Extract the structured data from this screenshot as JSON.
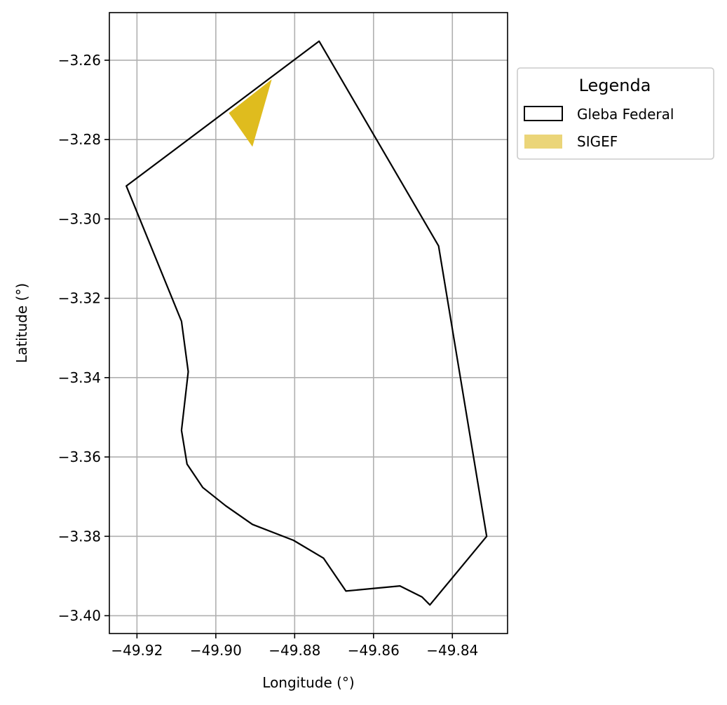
{
  "chart_data": {
    "type": "map",
    "xlabel": "Longitude (°)",
    "ylabel": "Latitude (°)",
    "xlim": [
      -49.927,
      -49.826
    ],
    "ylim": [
      -3.4045,
      -3.248
    ],
    "xticks": [
      -49.92,
      -49.9,
      -49.88,
      -49.86,
      -49.84
    ],
    "xtick_labels": [
      "−49.92",
      "−49.90",
      "−49.88",
      "−49.86",
      "−49.84"
    ],
    "yticks": [
      -3.26,
      -3.28,
      -3.3,
      -3.32,
      -3.34,
      -3.36,
      -3.38,
      -3.4
    ],
    "ytick_labels": [
      "−3.26",
      "−3.28",
      "−3.30",
      "−3.32",
      "−3.34",
      "−3.36",
      "−3.38",
      "−3.40"
    ],
    "grid": true,
    "legend": {
      "title": "Legenda",
      "placement": "outside-upper-right",
      "entries": [
        {
          "label": "Gleba Federal",
          "style": "outline"
        },
        {
          "label": "SIGEF",
          "style": "fill"
        }
      ]
    },
    "layers": [
      {
        "name": "Gleba Federal",
        "type": "polygon-outline",
        "stroke_color": "#000000",
        "coordinates": [
          [
            -49.8738,
            -3.2552
          ],
          [
            -49.8435,
            -3.3068
          ],
          [
            -49.8313,
            -3.38
          ],
          [
            -49.8457,
            -3.3973
          ],
          [
            -49.8477,
            -3.3953
          ],
          [
            -49.8533,
            -3.3925
          ],
          [
            -49.867,
            -3.3938
          ],
          [
            -49.8727,
            -3.3855
          ],
          [
            -49.8803,
            -3.381
          ],
          [
            -49.8907,
            -3.377
          ],
          [
            -49.8975,
            -3.3723
          ],
          [
            -49.9033,
            -3.3677
          ],
          [
            -49.9073,
            -3.3618
          ],
          [
            -49.9087,
            -3.3533
          ],
          [
            -49.907,
            -3.3385
          ],
          [
            -49.9087,
            -3.3258
          ],
          [
            -49.9227,
            -3.2917
          ],
          [
            -49.8738,
            -3.2552
          ]
        ]
      },
      {
        "name": "SIGEF",
        "type": "polygon-fill",
        "fill_color": "#dfbc1e",
        "legend_color": "#ebd579",
        "coordinates": [
          [
            -49.8967,
            -3.2733
          ],
          [
            -49.8858,
            -3.2648
          ],
          [
            -49.8907,
            -3.2818
          ],
          [
            -49.8967,
            -3.2733
          ]
        ]
      }
    ]
  }
}
